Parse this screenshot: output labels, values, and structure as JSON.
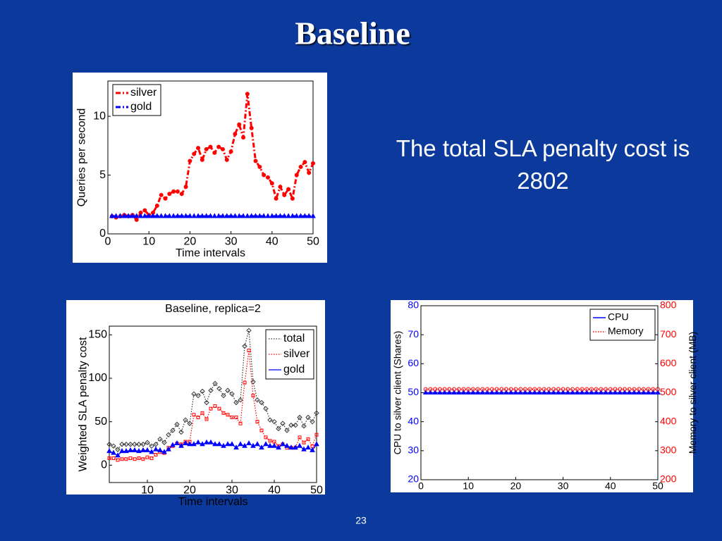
{
  "title": "Baseline",
  "text": "The total SLA penalty cost is 2802",
  "page_number": "23",
  "chart_data": [
    {
      "type": "line",
      "xlabel": "Time intervals",
      "ylabel": "Queries per second",
      "xlim": [
        0,
        50
      ],
      "xticks": [
        0,
        10,
        20,
        30,
        40,
        50
      ],
      "ylim": [
        0,
        13
      ],
      "yticks": [
        0,
        5,
        10
      ],
      "legend": "upper left",
      "x": [
        1,
        2,
        3,
        4,
        5,
        6,
        7,
        8,
        9,
        10,
        11,
        12,
        13,
        14,
        15,
        16,
        17,
        18,
        19,
        20,
        21,
        22,
        23,
        24,
        25,
        26,
        27,
        28,
        29,
        30,
        31,
        32,
        33,
        34,
        35,
        36,
        37,
        38,
        39,
        40,
        41,
        42,
        43,
        44,
        45,
        46,
        47,
        48,
        49,
        50
      ],
      "series": [
        {
          "name": "silver",
          "color": "#ff0000",
          "marker": "o",
          "linestyle": "dashdot",
          "values": [
            1.5,
            1.4,
            1.5,
            1.6,
            1.5,
            1.6,
            1.2,
            1.8,
            2.0,
            1.6,
            1.8,
            2.4,
            3.3,
            3.0,
            3.4,
            3.6,
            3.6,
            3.4,
            4.0,
            6.2,
            6.8,
            7.3,
            6.3,
            7.2,
            7.4,
            6.9,
            7.4,
            7.2,
            6.3,
            7.0,
            8.5,
            9.3,
            8.2,
            11.9,
            9.0,
            6.2,
            5.7,
            5.0,
            4.8,
            4.3,
            3.0,
            4.0,
            3.3,
            3.8,
            3.0,
            5.0,
            5.7,
            6.1,
            5.2,
            6.0
          ]
        },
        {
          "name": "gold",
          "color": "#0000ff",
          "marker": "^",
          "linestyle": "dashdot",
          "values": [
            1.5,
            1.5,
            1.5,
            1.5,
            1.5,
            1.5,
            1.5,
            1.5,
            1.5,
            1.5,
            1.5,
            1.5,
            1.5,
            1.5,
            1.5,
            1.5,
            1.5,
            1.5,
            1.5,
            1.5,
            1.5,
            1.5,
            1.5,
            1.5,
            1.5,
            1.5,
            1.5,
            1.5,
            1.5,
            1.5,
            1.5,
            1.5,
            1.5,
            1.5,
            1.5,
            1.5,
            1.5,
            1.5,
            1.5,
            1.5,
            1.5,
            1.5,
            1.5,
            1.5,
            1.5,
            1.5,
            1.5,
            1.5,
            1.5,
            1.5
          ]
        }
      ]
    },
    {
      "type": "line",
      "title": "Baseline, replica=2",
      "xlabel": "Time intervals",
      "ylabel": "Weighted SLA penalty cost",
      "xlim": [
        1,
        50
      ],
      "xticks": [
        10,
        20,
        30,
        40,
        50
      ],
      "ylim": [
        -20,
        160
      ],
      "yticks": [
        0,
        50,
        100,
        150
      ],
      "legend": "upper right",
      "x": [
        1,
        2,
        3,
        4,
        5,
        6,
        7,
        8,
        9,
        10,
        11,
        12,
        13,
        14,
        15,
        16,
        17,
        18,
        19,
        20,
        21,
        22,
        23,
        24,
        25,
        26,
        27,
        28,
        29,
        30,
        31,
        32,
        33,
        34,
        35,
        36,
        37,
        38,
        39,
        40,
        41,
        42,
        43,
        44,
        45,
        46,
        47,
        48,
        49,
        50
      ],
      "series": [
        {
          "name": "total",
          "color": "#333333",
          "marker": "d",
          "linestyle": "dotted",
          "values": [
            24,
            22,
            18,
            24,
            24,
            24,
            24,
            24,
            24,
            26,
            22,
            24,
            30,
            26,
            35,
            40,
            47,
            38,
            52,
            48,
            82,
            80,
            85,
            72,
            86,
            94,
            88,
            80,
            86,
            82,
            72,
            75,
            137,
            155,
            96,
            75,
            72,
            65,
            52,
            50,
            42,
            48,
            40,
            46,
            46,
            55,
            45,
            55,
            50,
            60
          ]
        },
        {
          "name": "silver",
          "color": "#ff0000",
          "marker": "s",
          "linestyle": "dotted",
          "values": [
            8,
            8,
            6,
            7,
            7,
            8,
            7,
            8,
            7,
            9,
            8,
            12,
            15,
            14,
            20,
            22,
            25,
            24,
            27,
            27,
            58,
            55,
            60,
            53,
            65,
            68,
            65,
            60,
            58,
            55,
            55,
            48,
            95,
            132,
            80,
            50,
            40,
            32,
            28,
            27,
            22,
            24,
            20,
            20,
            20,
            32,
            26,
            30,
            22,
            35
          ]
        },
        {
          "name": "gold",
          "color": "#0000ff",
          "marker": "^",
          "linestyle": "solid",
          "values": [
            16,
            14,
            11,
            16,
            16,
            17,
            17,
            16,
            17,
            17,
            15,
            18,
            17,
            15,
            18,
            23,
            25,
            22,
            25,
            24,
            24,
            26,
            24,
            26,
            26,
            24,
            24,
            22,
            24,
            24,
            20,
            24,
            22,
            25,
            22,
            24,
            20,
            24,
            22,
            22,
            20,
            24,
            22,
            20,
            20,
            22,
            18,
            20,
            17,
            24
          ]
        }
      ]
    },
    {
      "type": "line",
      "ylabel": "CPU to silver client (Shares)",
      "y2label": "Memory to silver client (MB)",
      "xlim": [
        0,
        50
      ],
      "xticks": [
        0,
        10,
        20,
        30,
        40,
        50
      ],
      "ylim": [
        20,
        80
      ],
      "yticks": [
        20,
        30,
        40,
        50,
        60,
        70,
        80
      ],
      "ycolor": "#0000ff",
      "y2lim": [
        200,
        800
      ],
      "y2ticks": [
        200,
        300,
        400,
        500,
        600,
        700,
        800
      ],
      "y2color": "#ff0000",
      "legend": "upper right",
      "x": [
        1,
        2,
        3,
        4,
        5,
        6,
        7,
        8,
        9,
        10,
        11,
        12,
        13,
        14,
        15,
        16,
        17,
        18,
        19,
        20,
        21,
        22,
        23,
        24,
        25,
        26,
        27,
        28,
        29,
        30,
        31,
        32,
        33,
        34,
        35,
        36,
        37,
        38,
        39,
        40,
        41,
        42,
        43,
        44,
        45,
        46,
        47,
        48,
        49,
        50
      ],
      "series": [
        {
          "name": "CPU",
          "color": "#0000ff",
          "marker": "^",
          "linestyle": "solid",
          "values": [
            50,
            50,
            50,
            50,
            50,
            50,
            50,
            50,
            50,
            50,
            50,
            50,
            50,
            50,
            50,
            50,
            50,
            50,
            50,
            50,
            50,
            50,
            50,
            50,
            50,
            50,
            50,
            50,
            50,
            50,
            50,
            50,
            50,
            50,
            50,
            50,
            50,
            50,
            50,
            50,
            50,
            50,
            50,
            50,
            50,
            50,
            50,
            50,
            50,
            50
          ]
        },
        {
          "name": "Memory",
          "color": "#ff0000",
          "marker": "o",
          "linestyle": "dotted",
          "axis": "y2",
          "values": [
            512,
            512,
            512,
            512,
            512,
            512,
            512,
            512,
            512,
            512,
            512,
            512,
            512,
            512,
            512,
            512,
            512,
            512,
            512,
            512,
            512,
            512,
            512,
            512,
            512,
            512,
            512,
            512,
            512,
            512,
            512,
            512,
            512,
            512,
            512,
            512,
            512,
            512,
            512,
            512,
            512,
            512,
            512,
            512,
            512,
            512,
            512,
            512,
            512,
            512
          ]
        }
      ]
    }
  ]
}
